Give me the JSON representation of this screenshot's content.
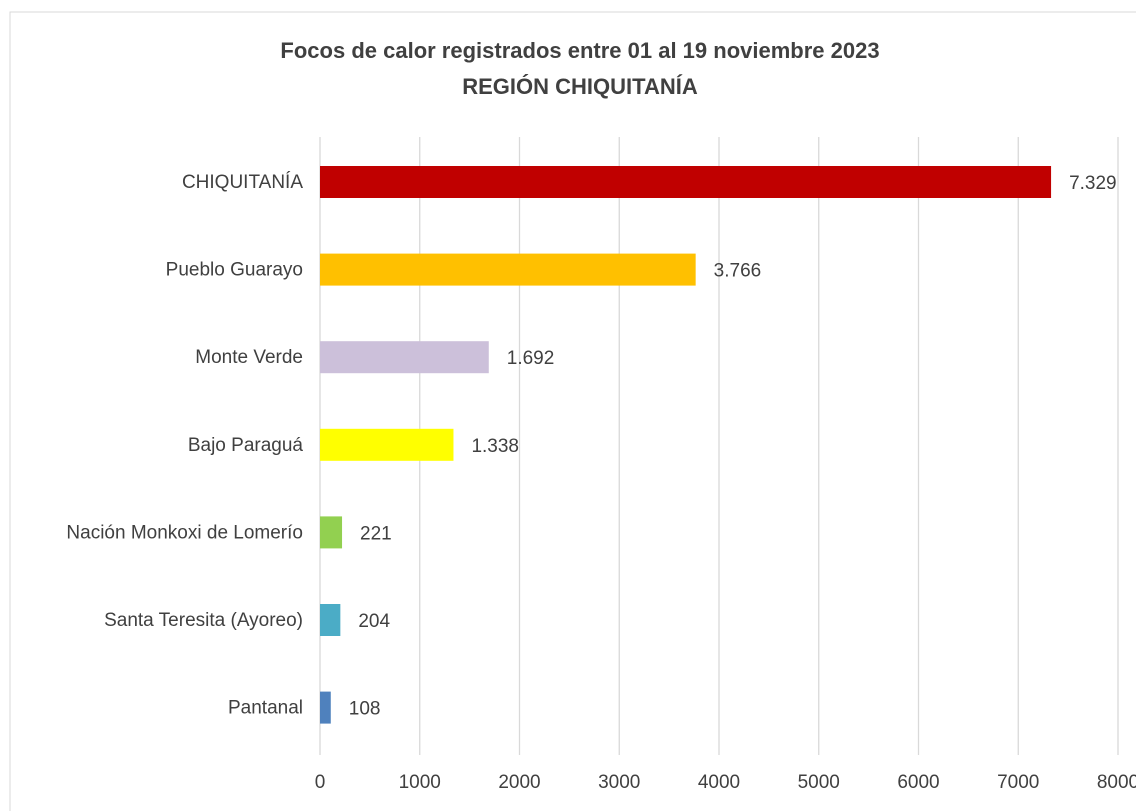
{
  "chart_data": {
    "type": "bar",
    "orientation": "horizontal",
    "title": "Focos de calor  registrados entre 01 al 19 noviembre 2023",
    "subtitle": "REGIÓN CHIQUITANÍA",
    "categories": [
      "CHIQUITANÍA",
      "Pueblo Guarayo",
      "Monte Verde",
      "Bajo Paraguá",
      "Nación Monkoxi de Lomerío",
      "Santa Teresita (Ayoreo)",
      "Pantanal"
    ],
    "values": [
      7329,
      3766,
      1692,
      1338,
      221,
      204,
      108
    ],
    "value_labels": [
      "7.329",
      "3.766",
      "1.692",
      "1.338",
      "221",
      "204",
      "108"
    ],
    "colors": [
      "#c00000",
      "#ffc000",
      "#ccc0da",
      "#ffff00",
      "#92d050",
      "#4bacc6",
      "#4f81bd"
    ],
    "xlim": [
      0,
      8000
    ],
    "xticks": [
      0,
      1000,
      2000,
      3000,
      4000,
      5000,
      6000,
      7000,
      8000
    ],
    "grid": true
  }
}
